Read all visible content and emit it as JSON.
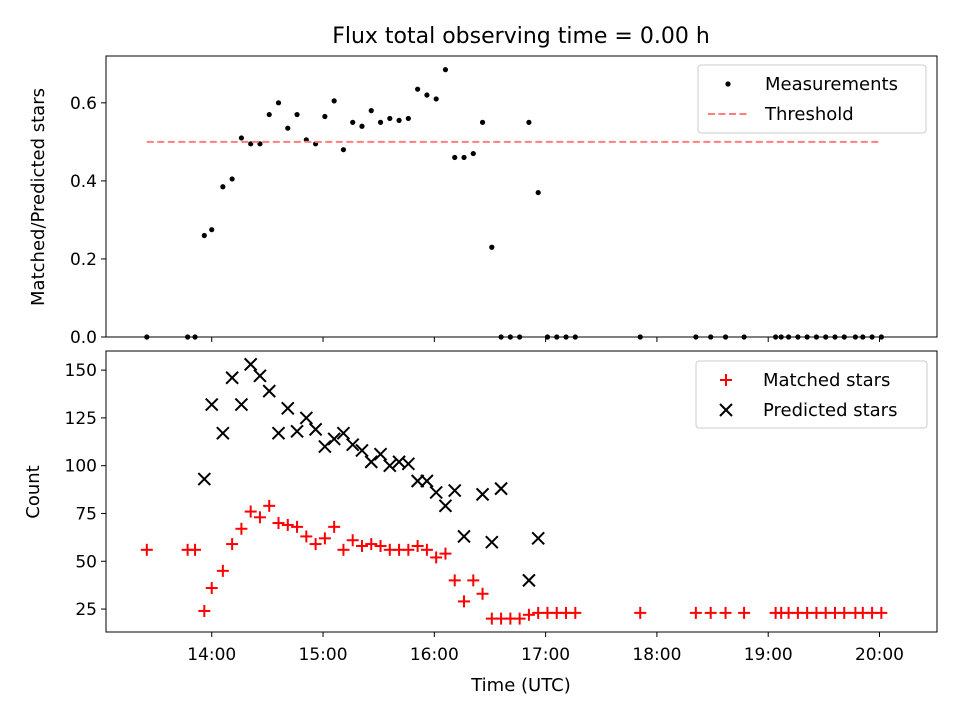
{
  "figure": {
    "title": "Flux total observing time = 0.00 h"
  },
  "chart_data": [
    {
      "type": "scatter",
      "ylabel": "Matched/Predicted stars",
      "xlabel": "",
      "xlim": [
        "13:03",
        "20:31"
      ],
      "ylim": [
        0,
        0.72
      ],
      "grid": false,
      "legend": "top-right",
      "yticks": [
        0.0,
        0.2,
        0.4,
        0.6
      ],
      "ytick_labels": [
        "0.0",
        "0.2",
        "0.4",
        "0.6"
      ],
      "xticks": [
        "14:00",
        "15:00",
        "16:00",
        "17:00",
        "18:00",
        "19:00",
        "20:00"
      ],
      "series": [
        {
          "name": "Measurements",
          "kind": "points",
          "color": "#000000",
          "x": [
            "13:25",
            "13:47",
            "13:51",
            "13:56",
            "14:00",
            "14:06",
            "14:11",
            "14:16",
            "14:21",
            "14:26",
            "14:31",
            "14:36",
            "14:41",
            "14:46",
            "14:51",
            "14:56",
            "15:01",
            "15:06",
            "15:11",
            "15:16",
            "15:21",
            "15:26",
            "15:31",
            "15:36",
            "15:41",
            "15:46",
            "15:51",
            "15:56",
            "16:01",
            "16:06",
            "16:11",
            "16:16",
            "16:21",
            "16:26",
            "16:31",
            "16:36",
            "16:41",
            "16:46",
            "16:51",
            "16:56",
            "17:01",
            "17:06",
            "17:11",
            "17:16",
            "17:51",
            "18:21",
            "18:29",
            "18:37",
            "18:47",
            "19:04",
            "19:07",
            "19:11",
            "19:16",
            "19:21",
            "19:26",
            "19:31",
            "19:36",
            "19:41",
            "19:47",
            "19:51",
            "19:56",
            "20:01"
          ],
          "y": [
            0,
            0,
            0,
            0.26,
            0.275,
            0.385,
            0.405,
            0.51,
            0.495,
            0.495,
            0.57,
            0.6,
            0.535,
            0.57,
            0.505,
            0.495,
            0.565,
            0.605,
            0.48,
            0.55,
            0.54,
            0.58,
            0.55,
            0.56,
            0.555,
            0.56,
            0.635,
            0.62,
            0.61,
            0.685,
            0.46,
            0.46,
            0.47,
            0.55,
            0.23,
            0,
            0,
            0,
            0.55,
            0.37,
            0,
            0,
            0,
            0,
            0,
            0,
            0,
            0,
            0,
            0,
            0,
            0,
            0,
            0,
            0,
            0,
            0,
            0,
            0,
            0,
            0,
            0
          ]
        },
        {
          "name": "Threshold",
          "kind": "dashed-line",
          "color": "#ff7f7f",
          "x": [
            "13:25",
            "20:01"
          ],
          "y": [
            0.5,
            0.5
          ]
        }
      ]
    },
    {
      "type": "scatter",
      "ylabel": "Count",
      "xlabel": "Time (UTC)",
      "xlim": [
        "13:03",
        "20:31"
      ],
      "ylim": [
        13,
        160
      ],
      "grid": false,
      "legend": "top-right",
      "yticks": [
        25,
        50,
        75,
        100,
        125,
        150
      ],
      "ytick_labels": [
        "25",
        "50",
        "75",
        "100",
        "125",
        "150"
      ],
      "xticks": [
        "14:00",
        "15:00",
        "16:00",
        "17:00",
        "18:00",
        "19:00",
        "20:00"
      ],
      "series": [
        {
          "name": "Matched stars",
          "marker": "plus",
          "color": "#ff0000",
          "x": [
            "13:25",
            "13:47",
            "13:51",
            "13:56",
            "14:00",
            "14:06",
            "14:11",
            "14:16",
            "14:21",
            "14:26",
            "14:31",
            "14:36",
            "14:41",
            "14:46",
            "14:51",
            "14:56",
            "15:01",
            "15:06",
            "15:11",
            "15:16",
            "15:21",
            "15:26",
            "15:31",
            "15:36",
            "15:41",
            "15:46",
            "15:51",
            "15:56",
            "16:01",
            "16:06",
            "16:11",
            "16:16",
            "16:21",
            "16:26",
            "16:31",
            "16:36",
            "16:41",
            "16:46",
            "16:51",
            "16:56",
            "17:01",
            "17:06",
            "17:11",
            "17:16",
            "17:51",
            "18:21",
            "18:29",
            "18:37",
            "18:47",
            "19:04",
            "19:07",
            "19:11",
            "19:16",
            "19:21",
            "19:26",
            "19:31",
            "19:36",
            "19:41",
            "19:47",
            "19:51",
            "19:56",
            "20:01"
          ],
          "y": [
            56,
            56,
            56,
            24,
            36,
            45,
            59,
            67,
            76,
            73,
            79,
            70,
            69,
            68,
            63,
            59,
            62,
            68,
            56,
            61,
            58,
            59,
            58,
            56,
            56,
            56,
            58,
            56,
            52,
            54,
            40,
            29,
            40,
            33,
            20,
            20,
            20,
            20,
            22,
            23,
            23,
            23,
            23,
            23,
            23,
            23,
            23,
            23,
            23,
            23,
            23,
            23,
            23,
            23,
            23,
            23,
            23,
            23,
            23,
            23,
            23,
            23
          ]
        },
        {
          "name": "Predicted stars",
          "marker": "x",
          "color": "#000000",
          "x": [
            "13:56",
            "14:00",
            "14:06",
            "14:11",
            "14:16",
            "14:21",
            "14:26",
            "14:31",
            "14:36",
            "14:41",
            "14:46",
            "14:51",
            "14:56",
            "15:01",
            "15:06",
            "15:11",
            "15:16",
            "15:21",
            "15:26",
            "15:31",
            "15:36",
            "15:41",
            "15:46",
            "15:51",
            "15:56",
            "16:01",
            "16:06",
            "16:11",
            "16:16",
            "16:26",
            "16:31",
            "16:36",
            "16:51",
            "16:56"
          ],
          "y": [
            93,
            132,
            117,
            146,
            132,
            153,
            147,
            139,
            117,
            130,
            118,
            125,
            119,
            110,
            114,
            117,
            111,
            108,
            102,
            106,
            100,
            102,
            101,
            92,
            92,
            86,
            79,
            87,
            63,
            85,
            60,
            88,
            40,
            62
          ]
        }
      ]
    }
  ]
}
